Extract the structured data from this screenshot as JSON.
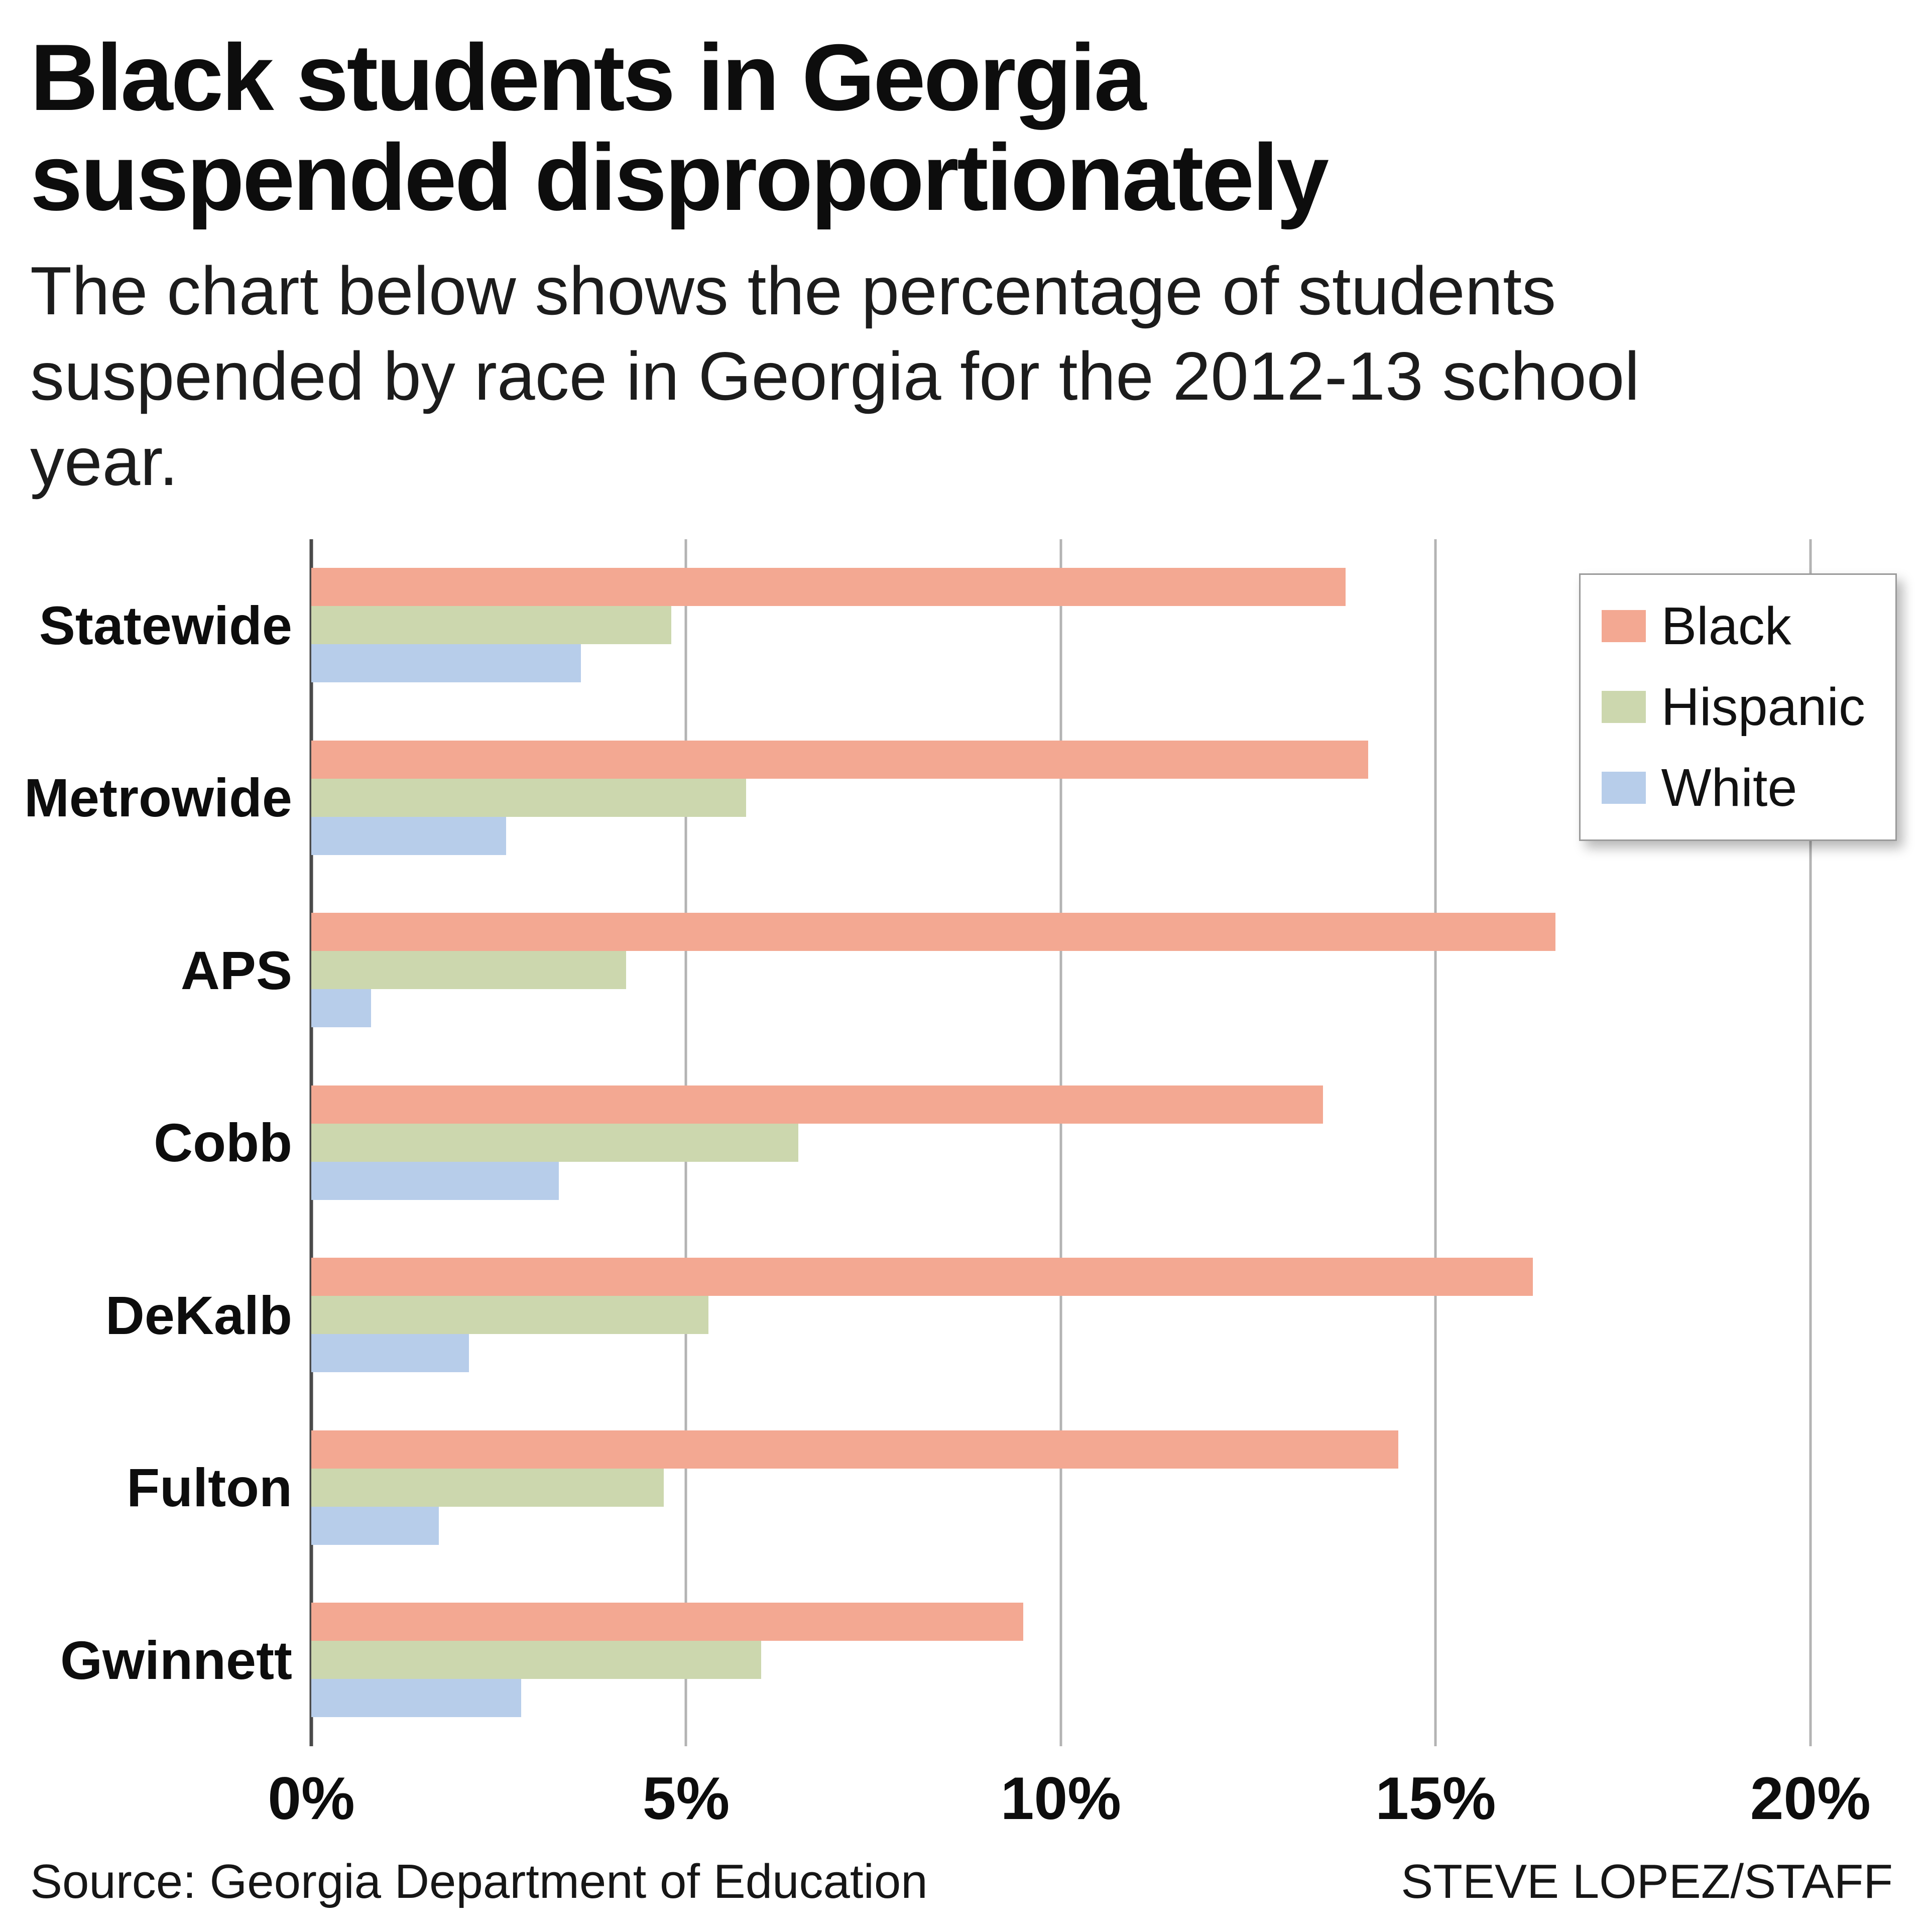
{
  "header": {
    "title": "Black students in Georgia suspended disproportionately",
    "subtitle": "The chart below shows the percentage of students suspended by race in Georgia for the 2012-13 school year."
  },
  "chart_data": {
    "type": "bar",
    "orientation": "horizontal",
    "title": "Black students in Georgia suspended disproportionately",
    "xlabel": "Percentage of students suspended",
    "ylabel": "",
    "categories": [
      "Statewide",
      "Metrowide",
      "APS",
      "Cobb",
      "DeKalb",
      "Fulton",
      "Gwinnett"
    ],
    "series": [
      {
        "name": "Black",
        "color": "#f3a892",
        "values": [
          13.8,
          14.1,
          16.6,
          13.5,
          16.3,
          14.5,
          9.5
        ]
      },
      {
        "name": "Hispanic",
        "color": "#ccd7ae",
        "values": [
          4.8,
          5.8,
          4.2,
          6.5,
          5.3,
          4.7,
          6.0
        ]
      },
      {
        "name": "White",
        "color": "#b7cdea",
        "values": [
          3.6,
          2.6,
          0.8,
          3.3,
          2.1,
          1.7,
          2.8
        ]
      }
    ],
    "x_ticks": [
      "0%",
      "5%",
      "10%",
      "15%",
      "20%"
    ],
    "x_tick_values": [
      0,
      5,
      10,
      15,
      20
    ],
    "xlim": [
      0,
      21.1
    ],
    "grid": true,
    "legend_position": "top-right"
  },
  "footer": {
    "source": "Source: Georgia Department of Education",
    "credit": "STEVE LOPEZ/STAFF"
  },
  "colors": {
    "grid": "#b3b3b3",
    "axis": "#4a4a4a",
    "text": "#111111"
  }
}
